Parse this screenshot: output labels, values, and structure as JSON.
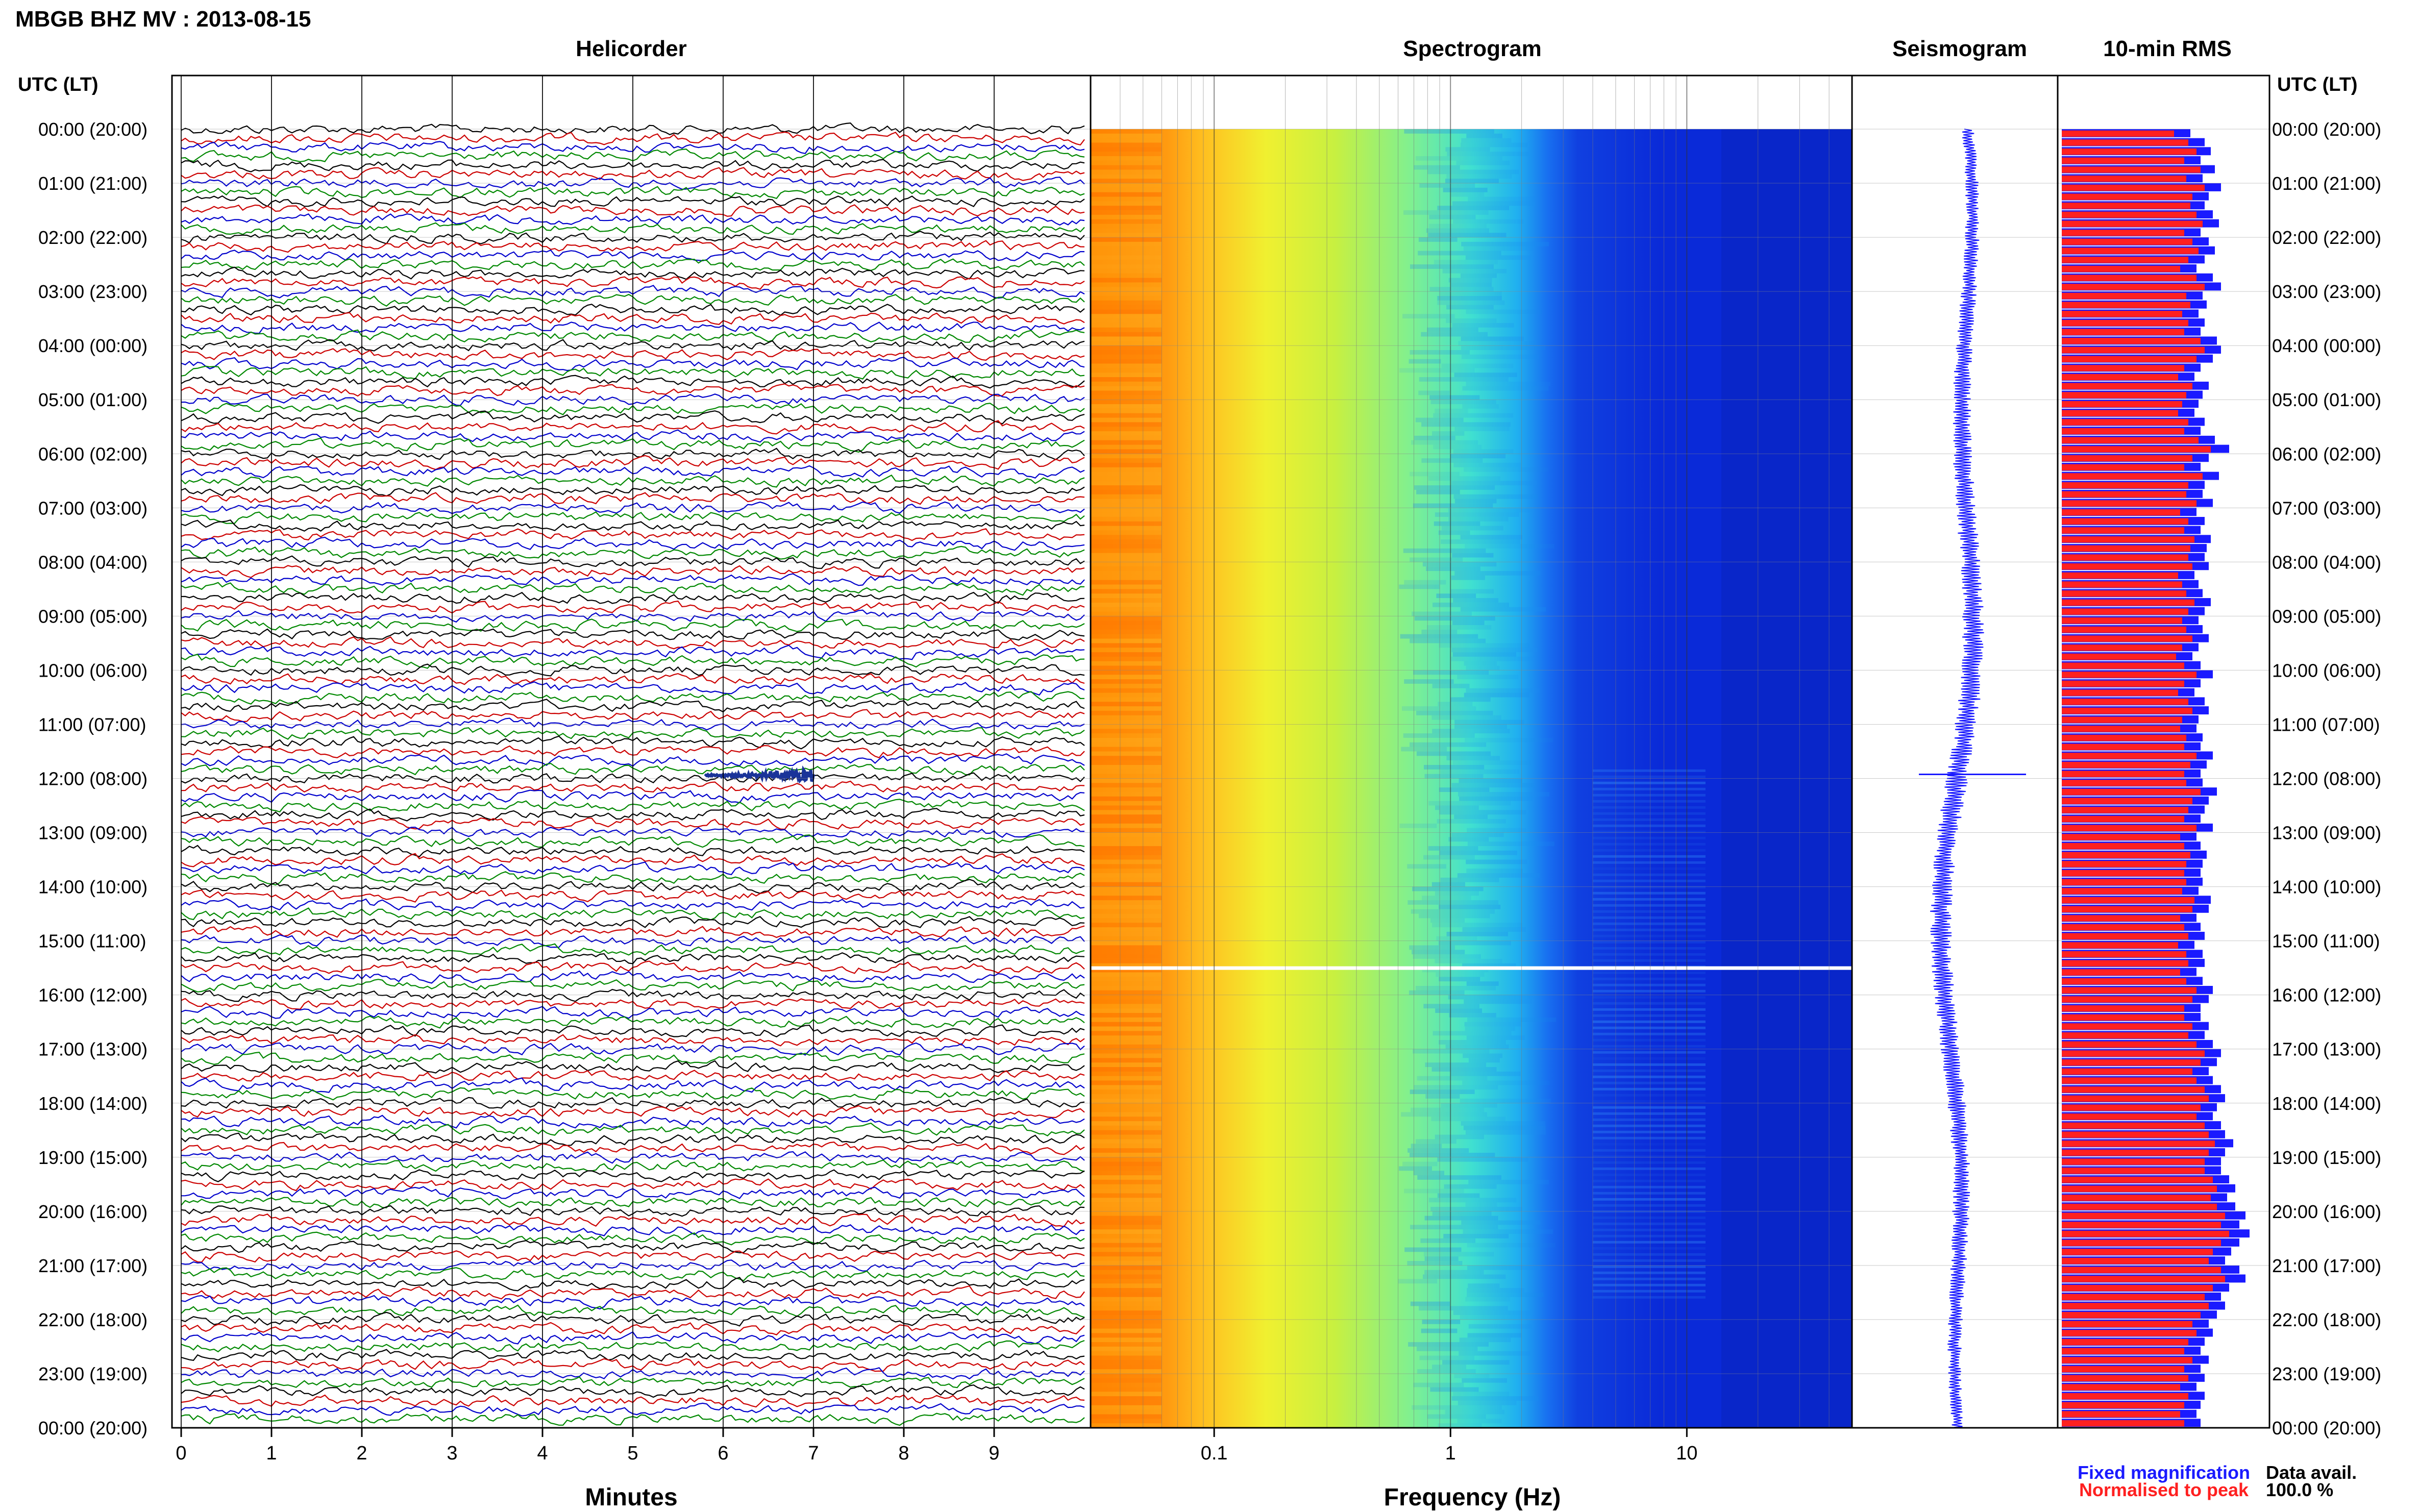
{
  "station_title": "MBGB BHZ MV : 2013-08-15",
  "panels": {
    "helicorder": "Helicorder",
    "spectrogram": "Spectrogram",
    "seismogram": "Seismogram",
    "rms": "10-min RMS"
  },
  "time_axis_label": "UTC (LT)",
  "time_labels": [
    "00:00 (20:00)",
    "01:00 (21:00)",
    "02:00 (22:00)",
    "03:00 (23:00)",
    "04:00 (00:00)",
    "05:00 (01:00)",
    "06:00 (02:00)",
    "07:00 (03:00)",
    "08:00 (04:00)",
    "09:00 (05:00)",
    "10:00 (06:00)",
    "11:00 (07:00)",
    "12:00 (08:00)",
    "13:00 (09:00)",
    "14:00 (10:00)",
    "15:00 (11:00)",
    "16:00 (12:00)",
    "17:00 (13:00)",
    "18:00 (14:00)",
    "19:00 (15:00)",
    "20:00 (16:00)",
    "21:00 (17:00)",
    "22:00 (18:00)",
    "23:00 (19:00)",
    "00:00 (20:00)"
  ],
  "x_axis_labels": {
    "helicorder": "Minutes",
    "spectrogram": "Frequency (Hz)"
  },
  "legend": {
    "fixed": "Fixed magnification",
    "normalised": "Normalised to peak"
  },
  "data_avail": {
    "label": "Data avail.",
    "value": "100.0 %"
  },
  "colors": {
    "fixed": "#1a1aff",
    "normalised": "#ff2020",
    "trace_cycle": [
      "#000000",
      "#cc0000",
      "#0000cc",
      "#008800"
    ]
  },
  "chart_data": [
    {
      "type": "line",
      "title": "Helicorder",
      "xlabel": "Minutes",
      "x_ticks": [
        0,
        1,
        2,
        3,
        4,
        5,
        6,
        7,
        8,
        9
      ],
      "xlim": [
        0,
        10
      ],
      "lines_per_hour": 6,
      "hours": 24,
      "event": {
        "time_utc": "12:00",
        "minute_start": 5.8,
        "minute_end": 7.0
      }
    },
    {
      "type": "heatmap",
      "title": "Spectrogram",
      "xlabel": "Frequency (Hz)",
      "x_scale": "log",
      "xlim": [
        0.03,
        50
      ],
      "x_ticks": [
        0.1,
        1,
        10
      ],
      "data_gap_utc": "15:30",
      "noise_bands_hz": [
        {
          "from_utc": "11:50",
          "to_utc": "21:40",
          "hz": [
            4,
            12
          ]
        }
      ]
    },
    {
      "type": "line",
      "title": "Seismogram",
      "event_utc": "12:00"
    },
    {
      "type": "bar",
      "title": "10-min RMS",
      "series": [
        {
          "name": "Fixed magnification",
          "values": [
            0.55,
            0.62,
            0.66,
            0.6,
            0.68,
            0.61,
            0.7,
            0.64,
            0.63,
            0.66,
            0.69,
            0.6,
            0.64,
            0.67,
            0.62,
            0.58,
            0.66,
            0.7,
            0.61,
            0.63,
            0.59,
            0.62,
            0.6,
            0.68,
            0.7,
            0.66,
            0.6,
            0.57,
            0.64,
            0.61,
            0.59,
            0.57,
            0.62,
            0.6,
            0.67,
            0.73,
            0.64,
            0.6,
            0.69,
            0.62,
            0.61,
            0.66,
            0.58,
            0.62,
            0.6,
            0.65,
            0.63,
            0.62,
            0.64,
            0.57,
            0.59,
            0.61,
            0.65,
            0.62,
            0.59,
            0.61,
            0.64,
            0.59,
            0.56,
            0.6,
            0.66,
            0.6,
            0.57,
            0.62,
            0.64,
            0.59,
            0.58,
            0.61,
            0.6,
            0.66,
            0.63,
            0.6,
            0.61,
            0.68,
            0.64,
            0.62,
            0.6,
            0.66,
            0.58,
            0.6,
            0.63,
            0.61,
            0.6,
            0.61,
            0.59,
            0.65,
            0.64,
            0.58,
            0.6,
            0.62,
            0.57,
            0.61,
            0.62,
            0.58,
            0.61,
            0.66,
            0.64,
            0.6,
            0.6,
            0.64,
            0.62,
            0.66,
            0.7,
            0.68,
            0.64,
            0.66,
            0.7,
            0.72,
            0.68,
            0.66,
            0.7,
            0.72,
            0.75,
            0.72,
            0.7,
            0.7,
            0.74,
            0.76,
            0.73,
            0.76,
            0.8,
            0.78,
            0.82,
            0.78,
            0.74,
            0.72,
            0.78,
            0.8,
            0.74,
            0.7,
            0.72,
            0.68,
            0.64,
            0.66,
            0.62,
            0.6,
            0.64,
            0.6,
            0.62,
            0.58,
            0.62,
            0.6,
            0.58,
            0.6
          ]
        },
        {
          "name": "Normalised to peak",
          "values": [
            0.63,
            0.7,
            0.73,
            0.68,
            0.75,
            0.69,
            0.78,
            0.72,
            0.7,
            0.74,
            0.77,
            0.68,
            0.72,
            0.75,
            0.7,
            0.66,
            0.74,
            0.78,
            0.69,
            0.71,
            0.67,
            0.7,
            0.68,
            0.76,
            0.78,
            0.74,
            0.68,
            0.65,
            0.72,
            0.69,
            0.67,
            0.65,
            0.7,
            0.68,
            0.75,
            0.82,
            0.72,
            0.68,
            0.77,
            0.7,
            0.69,
            0.74,
            0.66,
            0.7,
            0.68,
            0.73,
            0.71,
            0.7,
            0.72,
            0.65,
            0.67,
            0.69,
            0.73,
            0.7,
            0.67,
            0.69,
            0.72,
            0.67,
            0.64,
            0.68,
            0.74,
            0.68,
            0.65,
            0.7,
            0.72,
            0.67,
            0.66,
            0.69,
            0.68,
            0.74,
            0.71,
            0.68,
            0.69,
            0.76,
            0.72,
            0.7,
            0.68,
            0.74,
            0.66,
            0.68,
            0.71,
            0.69,
            0.68,
            0.69,
            0.67,
            0.73,
            0.72,
            0.66,
            0.68,
            0.7,
            0.65,
            0.69,
            0.7,
            0.66,
            0.69,
            0.74,
            0.72,
            0.68,
            0.68,
            0.72,
            0.7,
            0.74,
            0.78,
            0.76,
            0.72,
            0.74,
            0.78,
            0.8,
            0.76,
            0.74,
            0.78,
            0.8,
            0.84,
            0.8,
            0.78,
            0.78,
            0.82,
            0.85,
            0.81,
            0.85,
            0.9,
            0.87,
            0.92,
            0.87,
            0.83,
            0.8,
            0.87,
            0.9,
            0.82,
            0.78,
            0.8,
            0.76,
            0.72,
            0.74,
            0.7,
            0.68,
            0.72,
            0.68,
            0.7,
            0.66,
            0.7,
            0.68,
            0.66,
            0.68
          ]
        }
      ]
    }
  ]
}
